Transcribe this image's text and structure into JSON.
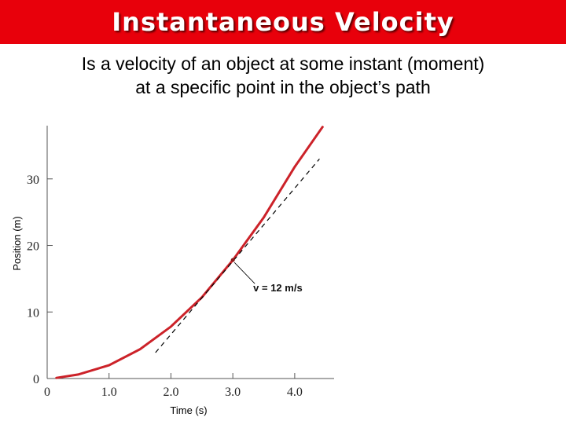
{
  "header": {
    "title": "Instantaneous Velocity",
    "bar_color": "#e8000b"
  },
  "body": {
    "line1": "Is a velocity of an object at some instant (moment)",
    "line2": "at a specific point in the object’s path"
  },
  "chart_data": {
    "type": "line",
    "xlabel": "Time (s)",
    "ylabel": "Position (m)",
    "xlim": [
      0,
      4.7
    ],
    "ylim": [
      0,
      38
    ],
    "x_ticks": [
      0,
      1.0,
      2.0,
      3.0,
      4.0
    ],
    "x_tick_labels": [
      "0",
      "1.0",
      "2.0",
      "3.0",
      "4.0"
    ],
    "y_ticks": [
      0,
      10,
      20,
      30
    ],
    "y_tick_labels": [
      "0",
      "10",
      "20",
      "30"
    ],
    "grid": false,
    "series": [
      {
        "style": "solid",
        "color": "#cc2229",
        "x": [
          0.15,
          0.5,
          1.0,
          1.5,
          2.0,
          2.5,
          3.0,
          3.5,
          4.0,
          4.45
        ],
        "y": [
          0.1,
          0.6,
          2.0,
          4.4,
          7.8,
          12.2,
          17.8,
          24.2,
          31.8,
          37.8
        ]
      },
      {
        "style": "dashed",
        "color": "#000000",
        "x": [
          1.75,
          4.4
        ],
        "y": [
          3.9,
          33.0
        ]
      }
    ],
    "annotations": [
      {
        "text": "v = 12 m/s",
        "point": [
          3.0,
          17.8
        ]
      }
    ]
  }
}
